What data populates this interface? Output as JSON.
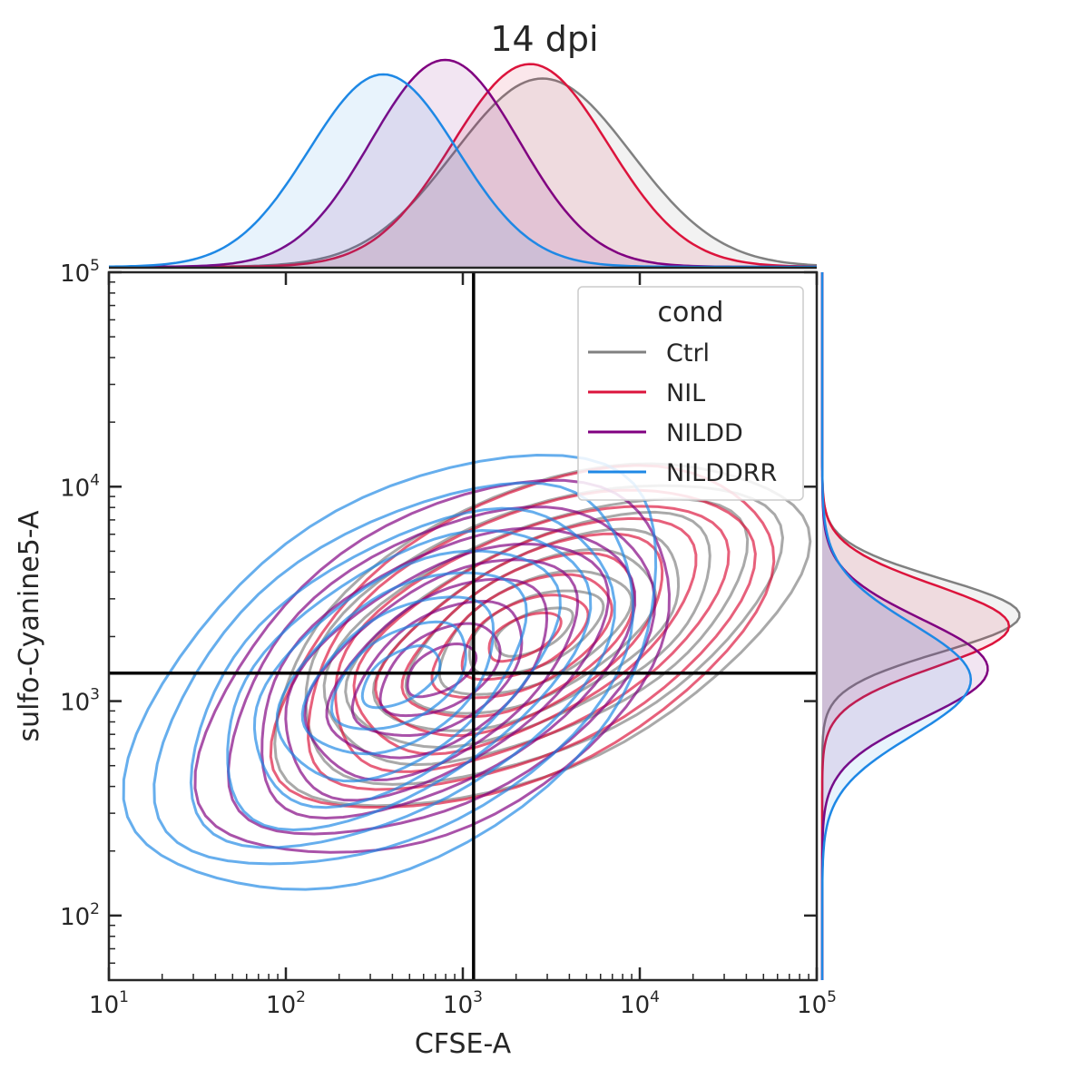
{
  "chart_data": {
    "type": "kde-joint",
    "title": "14 dpi",
    "xlabel": "CFSE-A",
    "ylabel": "sulfo-Cyanine5-A",
    "xscale": "log",
    "yscale": "log",
    "xlim": [
      10,
      100000
    ],
    "ylim": [
      50,
      100000
    ],
    "x_ticks": [
      {
        "base": "10",
        "exp": "1"
      },
      {
        "base": "10",
        "exp": "2"
      },
      {
        "base": "10",
        "exp": "3"
      },
      {
        "base": "10",
        "exp": "4"
      },
      {
        "base": "10",
        "exp": "5"
      }
    ],
    "y_ticks": [
      {
        "base": "10",
        "exp": "2"
      },
      {
        "base": "10",
        "exp": "3"
      },
      {
        "base": "10",
        "exp": "4"
      },
      {
        "base": "10",
        "exp": "5"
      }
    ],
    "gates": {
      "x": 1150,
      "y": 1350
    },
    "legend": {
      "title": "cond",
      "placement": "top-right"
    },
    "grid": false,
    "series": [
      {
        "name": "Ctrl",
        "color": "#808080",
        "center": [
          2500,
          2100
        ],
        "sx": 0.62,
        "sy": 0.33,
        "rho": 0.55,
        "levels": 9,
        "marg_x": {
          "mean": 3.45,
          "sd": 0.5,
          "peak": 0.91
        },
        "marg_y": {
          "mean": 3.4,
          "sd": 0.17,
          "peak": 0.93
        }
      },
      {
        "name": "NIL",
        "color": "#dc143c",
        "center": [
          2200,
          2000
        ],
        "sx": 0.58,
        "sy": 0.33,
        "rho": 0.55,
        "levels": 9,
        "marg_x": {
          "mean": 3.38,
          "sd": 0.44,
          "peak": 0.98
        },
        "marg_y": {
          "mean": 3.35,
          "sd": 0.19,
          "peak": 0.88
        }
      },
      {
        "name": "NILDD",
        "color": "#800080",
        "center": [
          750,
          1400
        ],
        "sx": 0.55,
        "sy": 0.36,
        "rho": 0.5,
        "levels": 9,
        "marg_x": {
          "mean": 2.9,
          "sd": 0.42,
          "peak": 1.0
        },
        "marg_y": {
          "mean": 3.15,
          "sd": 0.23,
          "peak": 0.78
        }
      },
      {
        "name": "NILDDRR",
        "color": "#1e88e5",
        "center": [
          450,
          1300
        ],
        "sx": 0.62,
        "sy": 0.42,
        "rho": 0.5,
        "levels": 9,
        "marg_x": {
          "mean": 2.55,
          "sd": 0.42,
          "peak": 0.93
        },
        "marg_y": {
          "mean": 3.1,
          "sd": 0.26,
          "peak": 0.7
        }
      }
    ]
  }
}
